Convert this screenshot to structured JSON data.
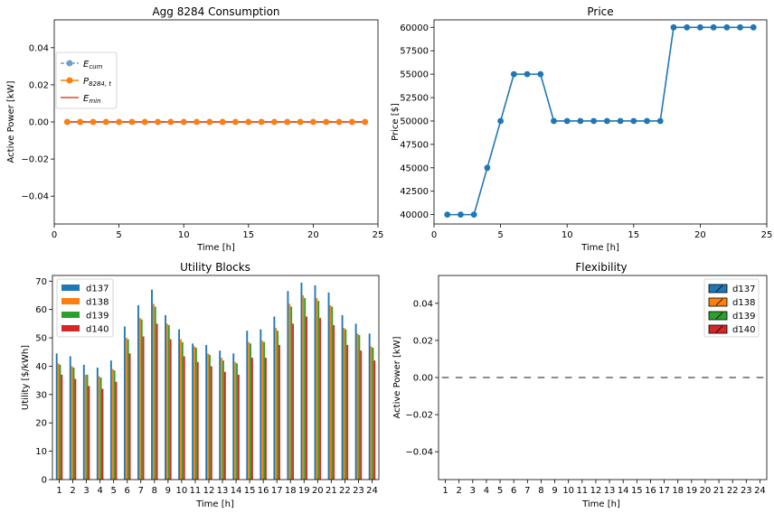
{
  "chart_data": [
    {
      "id": "consumption",
      "type": "line",
      "title": "Agg 8284 Consumption",
      "xlabel": "Time [h]",
      "ylabel": "Active Power [kW]",
      "xlim": [
        0,
        25
      ],
      "ylim": [
        -0.055,
        0.055
      ],
      "xticks": [
        0,
        5,
        10,
        15,
        20,
        25
      ],
      "yticks": [
        -0.04,
        -0.02,
        0.0,
        0.02,
        0.04
      ],
      "ytick_labels": [
        "−0.04",
        "−0.02",
        "0.00",
        "0.02",
        "0.04"
      ],
      "legend_position": "upper-left",
      "x": [
        1,
        2,
        3,
        4,
        5,
        6,
        7,
        8,
        9,
        10,
        11,
        12,
        13,
        14,
        15,
        16,
        17,
        18,
        19,
        20,
        21,
        22,
        23,
        24
      ],
      "series": [
        {
          "name": "E_cum",
          "name_main": "E",
          "name_sub": "cum",
          "color": "#6fa0cc",
          "style": "dashed-marker",
          "values": [
            0,
            0,
            0,
            0,
            0,
            0,
            0,
            0,
            0,
            0,
            0,
            0,
            0,
            0,
            0,
            0,
            0,
            0,
            0,
            0,
            0,
            0,
            0,
            0
          ]
        },
        {
          "name": "P_8284,t",
          "name_main": "P",
          "name_sub": "8284, t",
          "color": "#ff7f0e",
          "style": "solid-marker",
          "values": [
            0,
            0,
            0,
            0,
            0,
            0,
            0,
            0,
            0,
            0,
            0,
            0,
            0,
            0,
            0,
            0,
            0,
            0,
            0,
            0,
            0,
            0,
            0,
            0
          ]
        },
        {
          "name": "E_min",
          "name_main": "E",
          "name_sub": "min",
          "color": "#e8402a",
          "style": "solid",
          "values": [
            0,
            0,
            0,
            0,
            0,
            0,
            0,
            0,
            0,
            0,
            0,
            0,
            0,
            0,
            0,
            0,
            0,
            0,
            0,
            0,
            0,
            0,
            0,
            0
          ]
        }
      ]
    },
    {
      "id": "price",
      "type": "line",
      "title": "Price",
      "xlabel": "Time [h]",
      "ylabel": "Price [$]",
      "xlim": [
        0,
        25
      ],
      "ylim": [
        39000,
        60800
      ],
      "xticks": [
        0,
        5,
        10,
        15,
        20,
        25
      ],
      "yticks": [
        40000,
        42500,
        45000,
        47500,
        50000,
        52500,
        55000,
        57500,
        60000
      ],
      "color": "#1f77b4",
      "x": [
        1,
        2,
        3,
        4,
        5,
        6,
        7,
        8,
        9,
        10,
        11,
        12,
        13,
        14,
        15,
        16,
        17,
        18,
        19,
        20,
        21,
        22,
        23,
        24
      ],
      "values": [
        40000,
        40000,
        40000,
        45000,
        50000,
        55000,
        55000,
        55000,
        50000,
        50000,
        50000,
        50000,
        50000,
        50000,
        50000,
        50000,
        50000,
        60000,
        60000,
        60000,
        60000,
        60000,
        60000,
        60000
      ]
    },
    {
      "id": "utility",
      "type": "bar",
      "title": "Utility Blocks",
      "xlabel": "Time [h]",
      "ylabel": "Utility [$/kWh]",
      "ylim": [
        0,
        72
      ],
      "yticks": [
        0,
        10,
        20,
        30,
        40,
        50,
        60,
        70
      ],
      "legend_position": "upper-left",
      "categories": [
        "1",
        "2",
        "3",
        "4",
        "5",
        "6",
        "7",
        "8",
        "9",
        "10",
        "11",
        "12",
        "13",
        "14",
        "15",
        "16",
        "17",
        "18",
        "19",
        "20",
        "21",
        "22",
        "23",
        "24"
      ],
      "series": [
        {
          "name": "d137",
          "color": "#1f77b4",
          "values": [
            44.5,
            43.5,
            40.5,
            39.5,
            42,
            54,
            61.5,
            67,
            58,
            53,
            48,
            47.5,
            45.5,
            44.5,
            52.5,
            53,
            57.5,
            66.5,
            69.5,
            68.5,
            66,
            58,
            55,
            51.5
          ]
        },
        {
          "name": "d138",
          "color": "#ff7f0e",
          "values": [
            41,
            40,
            37,
            36.5,
            39,
            50,
            57,
            62,
            55,
            49.5,
            47,
            44.5,
            43,
            41.5,
            48.5,
            49,
            53.5,
            62,
            65,
            64,
            61.5,
            53.5,
            51.5,
            47
          ]
        },
        {
          "name": "d139",
          "color": "#2ca02c",
          "values": [
            40.5,
            39.5,
            37,
            36,
            38.5,
            49.5,
            56.5,
            61,
            54.5,
            48.5,
            46.5,
            44,
            42,
            41,
            48,
            48.5,
            52.5,
            61,
            64,
            63,
            61,
            53,
            51,
            46.5
          ]
        },
        {
          "name": "d140",
          "color": "#d62728",
          "values": [
            37,
            35.5,
            33,
            32,
            34.5,
            44.5,
            50.5,
            55,
            49.5,
            43.5,
            41.5,
            40,
            38,
            37,
            43,
            43,
            47.5,
            55,
            57.5,
            57,
            54.5,
            47.5,
            45.5,
            42
          ]
        }
      ]
    },
    {
      "id": "flexibility",
      "type": "bar",
      "title": "Flexibility",
      "xlabel": "Time [h]",
      "ylabel": "Active Power [kW]",
      "ylim": [
        -0.055,
        0.055
      ],
      "yticks": [
        -0.04,
        -0.02,
        0.0,
        0.02,
        0.04
      ],
      "ytick_labels": [
        "−0.04",
        "−0.02",
        "0.00",
        "0.02",
        "0.04"
      ],
      "legend_position": "upper-right",
      "categories": [
        "1",
        "2",
        "3",
        "4",
        "5",
        "6",
        "7",
        "8",
        "9",
        "10",
        "11",
        "12",
        "13",
        "14",
        "15",
        "16",
        "17",
        "18",
        "19",
        "20",
        "21",
        "22",
        "23",
        "24"
      ],
      "series": [
        {
          "name": "d137",
          "color": "#1f77b4",
          "hatch": "/",
          "values": [
            0,
            0,
            0,
            0,
            0,
            0,
            0,
            0,
            0,
            0,
            0,
            0,
            0,
            0,
            0,
            0,
            0,
            0,
            0,
            0,
            0,
            0,
            0,
            0
          ]
        },
        {
          "name": "d138",
          "color": "#ff7f0e",
          "hatch": "/",
          "values": [
            0,
            0,
            0,
            0,
            0,
            0,
            0,
            0,
            0,
            0,
            0,
            0,
            0,
            0,
            0,
            0,
            0,
            0,
            0,
            0,
            0,
            0,
            0,
            0
          ]
        },
        {
          "name": "d139",
          "color": "#2ca02c",
          "hatch": "/",
          "values": [
            0,
            0,
            0,
            0,
            0,
            0,
            0,
            0,
            0,
            0,
            0,
            0,
            0,
            0,
            0,
            0,
            0,
            0,
            0,
            0,
            0,
            0,
            0,
            0
          ]
        },
        {
          "name": "d140",
          "color": "#d62728",
          "hatch": "/",
          "values": [
            0,
            0,
            0,
            0,
            0,
            0,
            0,
            0,
            0,
            0,
            0,
            0,
            0,
            0,
            0,
            0,
            0,
            0,
            0,
            0,
            0,
            0,
            0,
            0
          ]
        }
      ]
    }
  ]
}
